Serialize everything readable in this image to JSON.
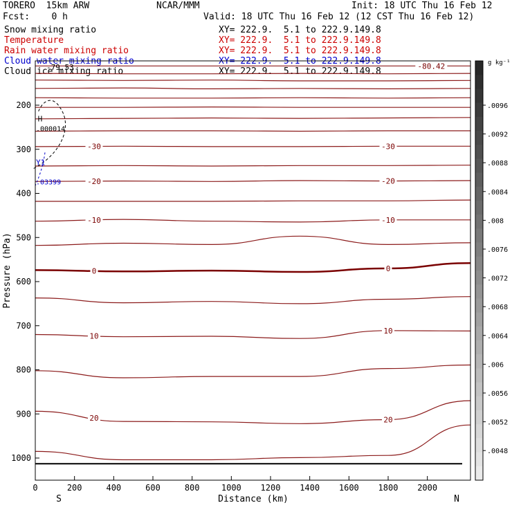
{
  "header": {
    "model": "TORERO  15km ARW",
    "center": "NCAR/MMM",
    "init": "Init: 18 UTC Thu 16 Feb 12",
    "fcst": "Fcst:    0 h",
    "valid": "Valid: 18 UTC Thu 16 Feb 12 (12 CST Thu 16 Feb 12)"
  },
  "fields": [
    {
      "label": "Snow mixing ratio",
      "coords": "XY= 222.9.  5.1 to 222.9.149.8",
      "color": "#000000"
    },
    {
      "label": "Temperature",
      "coords": "XY= 222.9.  5.1 to 222.9.149.8",
      "color": "#cc0000"
    },
    {
      "label": "Rain water mixing ratio",
      "coords": "XY= 222.9.  5.1 to 222.9.149.8",
      "color": "#cc0000"
    },
    {
      "label": "Cloud water mixing ratio",
      "coords": "XY= 222.9.  5.1 to 222.9.149.8",
      "color": "#0000cc"
    },
    {
      "label": "Cloud ice mixing ratio",
      "coords": "XY= 222.9.  5.1 to 222.9.149.8",
      "color": "#000000"
    }
  ],
  "chart_data": {
    "type": "contour",
    "xlabel": "Distance (km)",
    "ylabel": "Pressure (hPa)",
    "xlim": [
      0,
      2220
    ],
    "ylim": [
      1050,
      100
    ],
    "x_ticks": [
      0,
      200,
      400,
      600,
      800,
      1000,
      1200,
      1400,
      1600,
      1800,
      2000
    ],
    "y_ticks": [
      200,
      300,
      400,
      500,
      600,
      700,
      800,
      900,
      1000
    ],
    "x_end_labels": {
      "left": "S",
      "right": "N"
    },
    "temperature_contours": [
      {
        "value": -80.42,
        "pressure": [
          111,
          111,
          111,
          111,
          111,
          111
        ],
        "label": "-80.42"
      },
      {
        "value": null,
        "pressure": [
          128,
          129,
          129,
          128,
          129,
          128
        ]
      },
      {
        "value": null,
        "pressure": [
          143,
          144,
          143,
          145,
          145,
          144
        ]
      },
      {
        "value": null,
        "pressure": [
          162,
          161,
          163,
          162,
          163,
          162
        ]
      },
      {
        "value": null,
        "pressure": [
          183,
          184,
          184,
          183,
          184,
          183
        ]
      },
      {
        "value": null,
        "pressure": [
          205,
          205,
          204,
          205,
          205,
          205
        ]
      },
      {
        "value": null,
        "pressure": [
          231,
          230,
          229,
          230,
          229,
          228
        ]
      },
      {
        "value": null,
        "pressure": [
          259,
          258,
          258,
          259,
          258,
          258
        ]
      },
      {
        "value": -30,
        "pressure": [
          294,
          293,
          294,
          294,
          293,
          293
        ],
        "label": "-30"
      },
      {
        "value": null,
        "pressure": [
          338,
          337,
          338,
          337,
          337,
          336
        ]
      },
      {
        "value": -20,
        "pressure": [
          373,
          372,
          373,
          371,
          372,
          371
        ],
        "label": "-20"
      },
      {
        "value": null,
        "pressure": [
          418,
          418,
          418,
          417,
          417,
          415
        ]
      },
      {
        "value": -10,
        "pressure": [
          463,
          459,
          463,
          465,
          460,
          460
        ],
        "label": "-10"
      },
      {
        "value": null,
        "pressure": [
          518,
          513,
          516,
          497,
          516,
          512
        ]
      },
      {
        "value": 0,
        "pressure": [
          574,
          577,
          575,
          578,
          570,
          558
        ],
        "label": "0"
      },
      {
        "value": null,
        "pressure": [
          637,
          648,
          645,
          650,
          640,
          634
        ]
      },
      {
        "value": 10,
        "pressure": [
          720,
          725,
          724,
          729,
          711,
          712
        ],
        "label": "10"
      },
      {
        "value": null,
        "pressure": [
          802,
          818,
          815,
          815,
          797,
          789
        ]
      },
      {
        "value": 20,
        "pressure": [
          894,
          917,
          918,
          922,
          913,
          870
        ],
        "label": "20"
      },
      {
        "value": null,
        "pressure": [
          985,
          1004,
          1004,
          999,
          994,
          925
        ]
      }
    ],
    "contour_x": [
      0,
      450,
      900,
      1350,
      1800,
      2220
    ],
    "surface_pressure": 1013,
    "snow_max": {
      "label": "H",
      "value": ".000014",
      "x": 20,
      "pressure": 265
    },
    "cloud_ice_label": "-79.53",
    "cloud_water_max": {
      "label": "Y1",
      "value": ".03399",
      "x": 20,
      "pressure": 370
    },
    "colorbar": {
      "unit": "g kg⁻¹",
      "ticks": [
        ".0096",
        ".0092",
        ".0088",
        ".0084",
        ".008",
        ".0076",
        ".0072",
        ".0068",
        ".0064",
        ".006",
        ".0056",
        ".0052",
        ".0048"
      ]
    }
  }
}
